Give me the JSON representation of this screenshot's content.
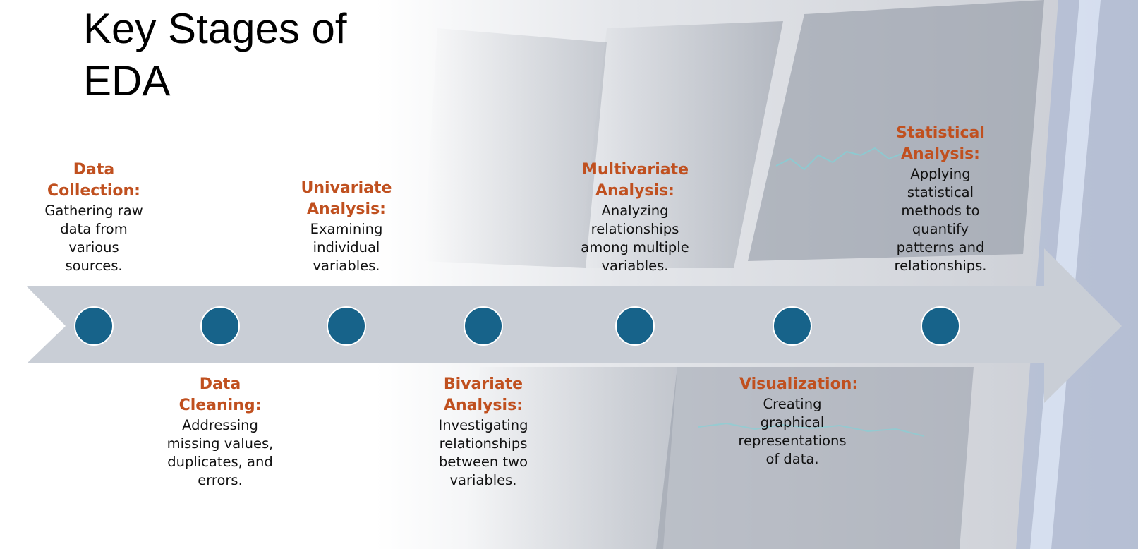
{
  "title": "Key Stages of EDA",
  "stages": [
    {
      "label": "Data Collection:",
      "description": "Gathering raw data from various sources."
    },
    {
      "label": "Data Cleaning:",
      "description": "Addressing missing values, duplicates, and errors."
    },
    {
      "label": "Univariate Analysis:",
      "description": "Examining individual variables."
    },
    {
      "label": "Bivariate Analysis:",
      "description": "Investigating relationships between two variables."
    },
    {
      "label": "Multivariate Analysis:",
      "description": "Analyzing relationships among multiple variables."
    },
    {
      "label": "Visualization:",
      "description": "Creating graphical representations of data."
    },
    {
      "label": "Statistical Analysis:",
      "description": "Applying statistical methods to quantify patterns and relationships."
    }
  ]
}
